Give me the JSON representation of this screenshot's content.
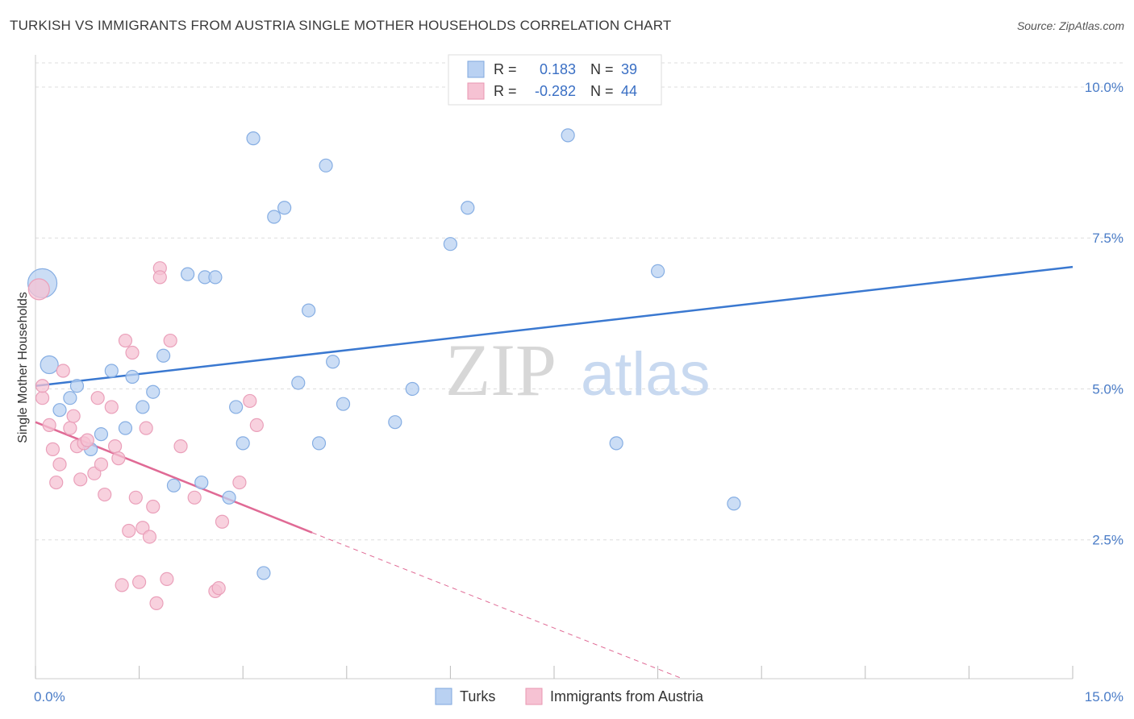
{
  "title": "TURKISH VS IMMIGRANTS FROM AUSTRIA SINGLE MOTHER HOUSEHOLDS CORRELATION CHART",
  "source": "Source: ZipAtlas.com",
  "watermark": {
    "zip": "ZIP",
    "atlas": "atlas"
  },
  "colors": {
    "blue": "#3a78d0",
    "blue_fill": "#b9d1f2",
    "pink": "#e06a95",
    "pink_fill": "#f6c2d3",
    "grid": "#dddddd",
    "tick": "#4a7cc7"
  },
  "chart_data": {
    "type": "scatter",
    "ylabel": "Single Mother Households",
    "x_tick_labels": {
      "min": "0.0%",
      "max": "15.0%"
    },
    "y_tick_labels": [
      "2.5%",
      "5.0%",
      "7.5%",
      "10.0%"
    ],
    "y_ticks": [
      2.5,
      5.0,
      7.5,
      10.0
    ],
    "xlim": [
      0,
      15
    ],
    "ylim": [
      0.2,
      10.4
    ],
    "legend": {
      "placement": "top-center",
      "rows": [
        {
          "r_label": "R =",
          "r_value": "0.183",
          "n_label": "N =",
          "n_value": "39"
        },
        {
          "r_label": "R =",
          "r_value": "-0.282",
          "n_label": "N =",
          "n_value": "44"
        }
      ]
    },
    "series": [
      {
        "name": "Turks",
        "trend": {
          "x": [
            0,
            15
          ],
          "y": [
            5.05,
            7.02
          ]
        },
        "points": [
          [
            0.1,
            6.75,
            34
          ],
          [
            0.2,
            5.4,
            20
          ],
          [
            0.35,
            4.65,
            14
          ],
          [
            0.5,
            4.85,
            14
          ],
          [
            0.6,
            5.05,
            14
          ],
          [
            0.8,
            4.0,
            14
          ],
          [
            0.95,
            4.25,
            14
          ],
          [
            1.1,
            5.3,
            14
          ],
          [
            1.3,
            4.35,
            14
          ],
          [
            1.4,
            5.2,
            14
          ],
          [
            1.55,
            4.7,
            14
          ],
          [
            1.7,
            4.95,
            14
          ],
          [
            1.85,
            5.55,
            14
          ],
          [
            2.0,
            3.4,
            14
          ],
          [
            2.2,
            6.9,
            14
          ],
          [
            2.4,
            3.45,
            14
          ],
          [
            2.45,
            6.85,
            14
          ],
          [
            2.6,
            6.85,
            14
          ],
          [
            2.8,
            3.2,
            14
          ],
          [
            2.9,
            4.7,
            14
          ],
          [
            3.0,
            4.1,
            14
          ],
          [
            3.15,
            9.15,
            14
          ],
          [
            3.3,
            1.95,
            14
          ],
          [
            3.45,
            7.85,
            14
          ],
          [
            3.6,
            8.0,
            14
          ],
          [
            3.8,
            5.1,
            14
          ],
          [
            3.95,
            6.3,
            14
          ],
          [
            4.1,
            4.1,
            14
          ],
          [
            4.2,
            8.7,
            14
          ],
          [
            4.3,
            5.45,
            14
          ],
          [
            4.45,
            4.75,
            14
          ],
          [
            5.2,
            4.45,
            14
          ],
          [
            5.45,
            5.0,
            14
          ],
          [
            6.0,
            7.4,
            14
          ],
          [
            6.25,
            8.0,
            14
          ],
          [
            7.7,
            9.2,
            14
          ],
          [
            8.4,
            4.1,
            14
          ],
          [
            9.0,
            6.95,
            14
          ],
          [
            10.1,
            3.1,
            14
          ]
        ]
      },
      {
        "name": "Immigrants from Austria",
        "trend": {
          "x": [
            0,
            4.0
          ],
          "y": [
            4.45,
            2.62
          ]
        },
        "trend_dashed": {
          "x": [
            4.0,
            9.8
          ],
          "y": [
            2.62,
            0.0
          ]
        },
        "points": [
          [
            0.05,
            6.65,
            24
          ],
          [
            0.1,
            4.85,
            14
          ],
          [
            0.1,
            5.05,
            14
          ],
          [
            0.2,
            4.4,
            14
          ],
          [
            0.25,
            4.0,
            14
          ],
          [
            0.3,
            3.45,
            14
          ],
          [
            0.35,
            3.75,
            14
          ],
          [
            0.4,
            5.3,
            14
          ],
          [
            0.5,
            4.35,
            14
          ],
          [
            0.55,
            4.55,
            14
          ],
          [
            0.6,
            4.05,
            14
          ],
          [
            0.65,
            3.5,
            14
          ],
          [
            0.7,
            4.1,
            14
          ],
          [
            0.75,
            4.15,
            14
          ],
          [
            0.85,
            3.6,
            14
          ],
          [
            0.9,
            4.85,
            14
          ],
          [
            0.95,
            3.75,
            14
          ],
          [
            1.0,
            3.25,
            14
          ],
          [
            1.1,
            4.7,
            14
          ],
          [
            1.15,
            4.05,
            14
          ],
          [
            1.2,
            3.85,
            14
          ],
          [
            1.25,
            1.75,
            14
          ],
          [
            1.3,
            5.8,
            14
          ],
          [
            1.35,
            2.65,
            14
          ],
          [
            1.4,
            5.6,
            14
          ],
          [
            1.45,
            3.2,
            14
          ],
          [
            1.5,
            1.8,
            14
          ],
          [
            1.55,
            2.7,
            14
          ],
          [
            1.6,
            4.35,
            14
          ],
          [
            1.65,
            2.55,
            14
          ],
          [
            1.7,
            3.05,
            14
          ],
          [
            1.75,
            1.45,
            14
          ],
          [
            1.8,
            7.0,
            14
          ],
          [
            1.8,
            6.85,
            14
          ],
          [
            1.9,
            1.85,
            14
          ],
          [
            1.95,
            5.8,
            14
          ],
          [
            2.3,
            3.2,
            14
          ],
          [
            2.6,
            1.65,
            14
          ],
          [
            2.65,
            1.7,
            14
          ],
          [
            2.7,
            2.8,
            14
          ],
          [
            2.95,
            3.45,
            14
          ],
          [
            3.1,
            4.8,
            14
          ],
          [
            3.2,
            4.4,
            14
          ],
          [
            2.1,
            4.05,
            14
          ]
        ]
      }
    ]
  }
}
